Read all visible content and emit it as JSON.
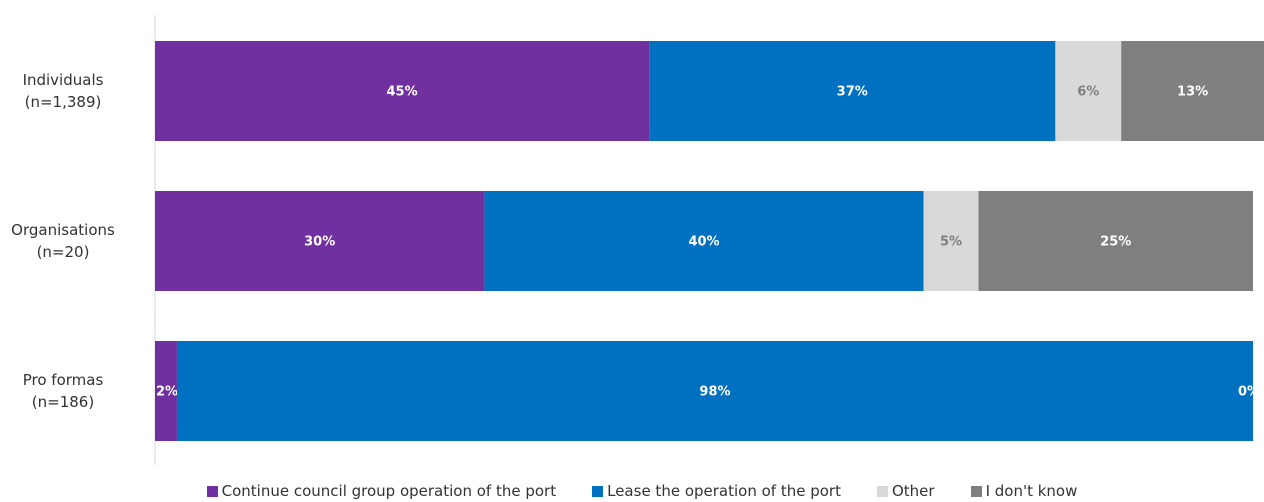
{
  "chart_data": {
    "type": "bar",
    "stacked": true,
    "orientation": "horizontal",
    "categories": [
      "Individuals\n(n=1,389)",
      "Organisations\n(n=20)",
      "Pro formas\n(n=186)"
    ],
    "xlim": [
      0,
      100
    ],
    "series": [
      {
        "name": "Continue council group operation of the port",
        "color": "#7030a0",
        "label_color": "#ffffff",
        "values": [
          45,
          30,
          2
        ],
        "value_labels": [
          "45%",
          "30%",
          "2%"
        ]
      },
      {
        "name": "Lease the operation of the port",
        "color": "#0070c0",
        "label_color": "#ffffff",
        "values": [
          37,
          40,
          98
        ],
        "value_labels": [
          "37%",
          "40%",
          "98%"
        ]
      },
      {
        "name": "Other",
        "color": "#d9d9d9",
        "label_color": "#7f7f7f",
        "values": [
          6,
          5,
          0
        ],
        "value_labels": [
          "6%",
          "5%",
          null
        ]
      },
      {
        "name": "I don't know",
        "color": "#7f7f7f",
        "label_color": "#ffffff",
        "values": [
          13,
          25,
          0
        ],
        "value_labels": [
          "13%",
          "25%",
          "0%"
        ]
      }
    ]
  }
}
